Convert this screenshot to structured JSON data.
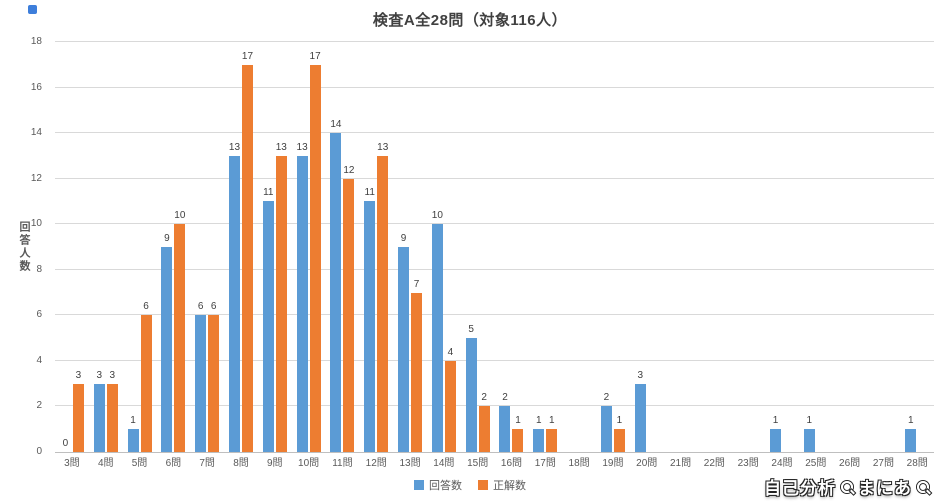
{
  "title": "検査A全28問（対象116人）",
  "watermark": {
    "part1": "自己分析",
    "part2": "まにあ"
  },
  "legend": [
    {
      "label": "回答数",
      "color": "#5B9BD5"
    },
    {
      "label": "正解数",
      "color": "#ED7D31"
    }
  ],
  "colors": {
    "answers": "#5B9BD5",
    "correct": "#ED7D31",
    "grid": "#D9D9D9",
    "axis_text": "#595959"
  },
  "chart_data": {
    "type": "bar",
    "title": "検査A全28問（対象116人）",
    "xlabel": "",
    "ylabel": "回答人数",
    "ylim": [
      0,
      18
    ],
    "ytick_step": 2,
    "grid": true,
    "legend_position": "bottom",
    "categories": [
      "3問",
      "4問",
      "5問",
      "6問",
      "7問",
      "8問",
      "9問",
      "10問",
      "11問",
      "12問",
      "13問",
      "14問",
      "15問",
      "16問",
      "17問",
      "18問",
      "19問",
      "20問",
      "21問",
      "22問",
      "23問",
      "24問",
      "25問",
      "26問",
      "27問",
      "28問"
    ],
    "series": [
      {
        "name": "回答数",
        "color": "#5B9BD5",
        "values": [
          0,
          3,
          1,
          9,
          6,
          13,
          11,
          13,
          14,
          11,
          9,
          10,
          5,
          2,
          1,
          0,
          2,
          3,
          0,
          0,
          0,
          1,
          1,
          0,
          0,
          1
        ],
        "labels": [
          "0",
          "3",
          "1",
          "9",
          "6",
          "13",
          "11",
          "13",
          "14",
          "11",
          "9",
          "10",
          "5",
          "2",
          "1",
          "",
          "2",
          "3",
          "",
          "",
          "",
          "1",
          "1",
          "",
          "",
          "1"
        ]
      },
      {
        "name": "正解数",
        "color": "#ED7D31",
        "values": [
          3,
          3,
          6,
          10,
          6,
          17,
          13,
          17,
          12,
          13,
          7,
          4,
          2,
          1,
          1,
          0,
          1,
          0,
          0,
          0,
          0,
          0,
          0,
          0,
          0,
          0
        ],
        "labels": [
          "3",
          "3",
          "6",
          "10",
          "6",
          "17",
          "13",
          "17",
          "12",
          "13",
          "7",
          "4",
          "2",
          "1",
          "1",
          "",
          "1",
          "",
          "",
          "",
          "",
          "",
          "",
          "",
          "",
          ""
        ]
      }
    ]
  }
}
